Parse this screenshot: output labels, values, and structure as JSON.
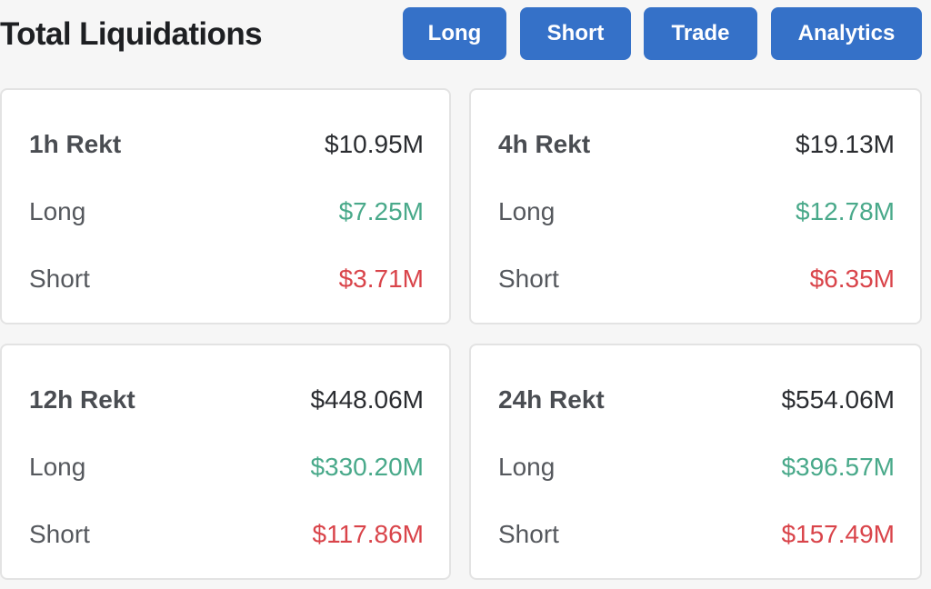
{
  "title": "Total Liquidations",
  "nav": {
    "long_label": "Long",
    "short_label": "Short",
    "trade_label": "Trade",
    "analytics_label": "Analytics"
  },
  "colors": {
    "button_bg": "#3571c8",
    "long": "#49a98a",
    "short": "#d9444a"
  },
  "cards": [
    {
      "period": "1h Rekt",
      "total": "$10.95M",
      "long_label": "Long",
      "long": "$7.25M",
      "short_label": "Short",
      "short": "$3.71M"
    },
    {
      "period": "4h Rekt",
      "total": "$19.13M",
      "long_label": "Long",
      "long": "$12.78M",
      "short_label": "Short",
      "short": "$6.35M"
    },
    {
      "period": "12h Rekt",
      "total": "$448.06M",
      "long_label": "Long",
      "long": "$330.20M",
      "short_label": "Short",
      "short": "$117.86M"
    },
    {
      "period": "24h Rekt",
      "total": "$554.06M",
      "long_label": "Long",
      "long": "$396.57M",
      "short_label": "Short",
      "short": "$157.49M"
    }
  ]
}
